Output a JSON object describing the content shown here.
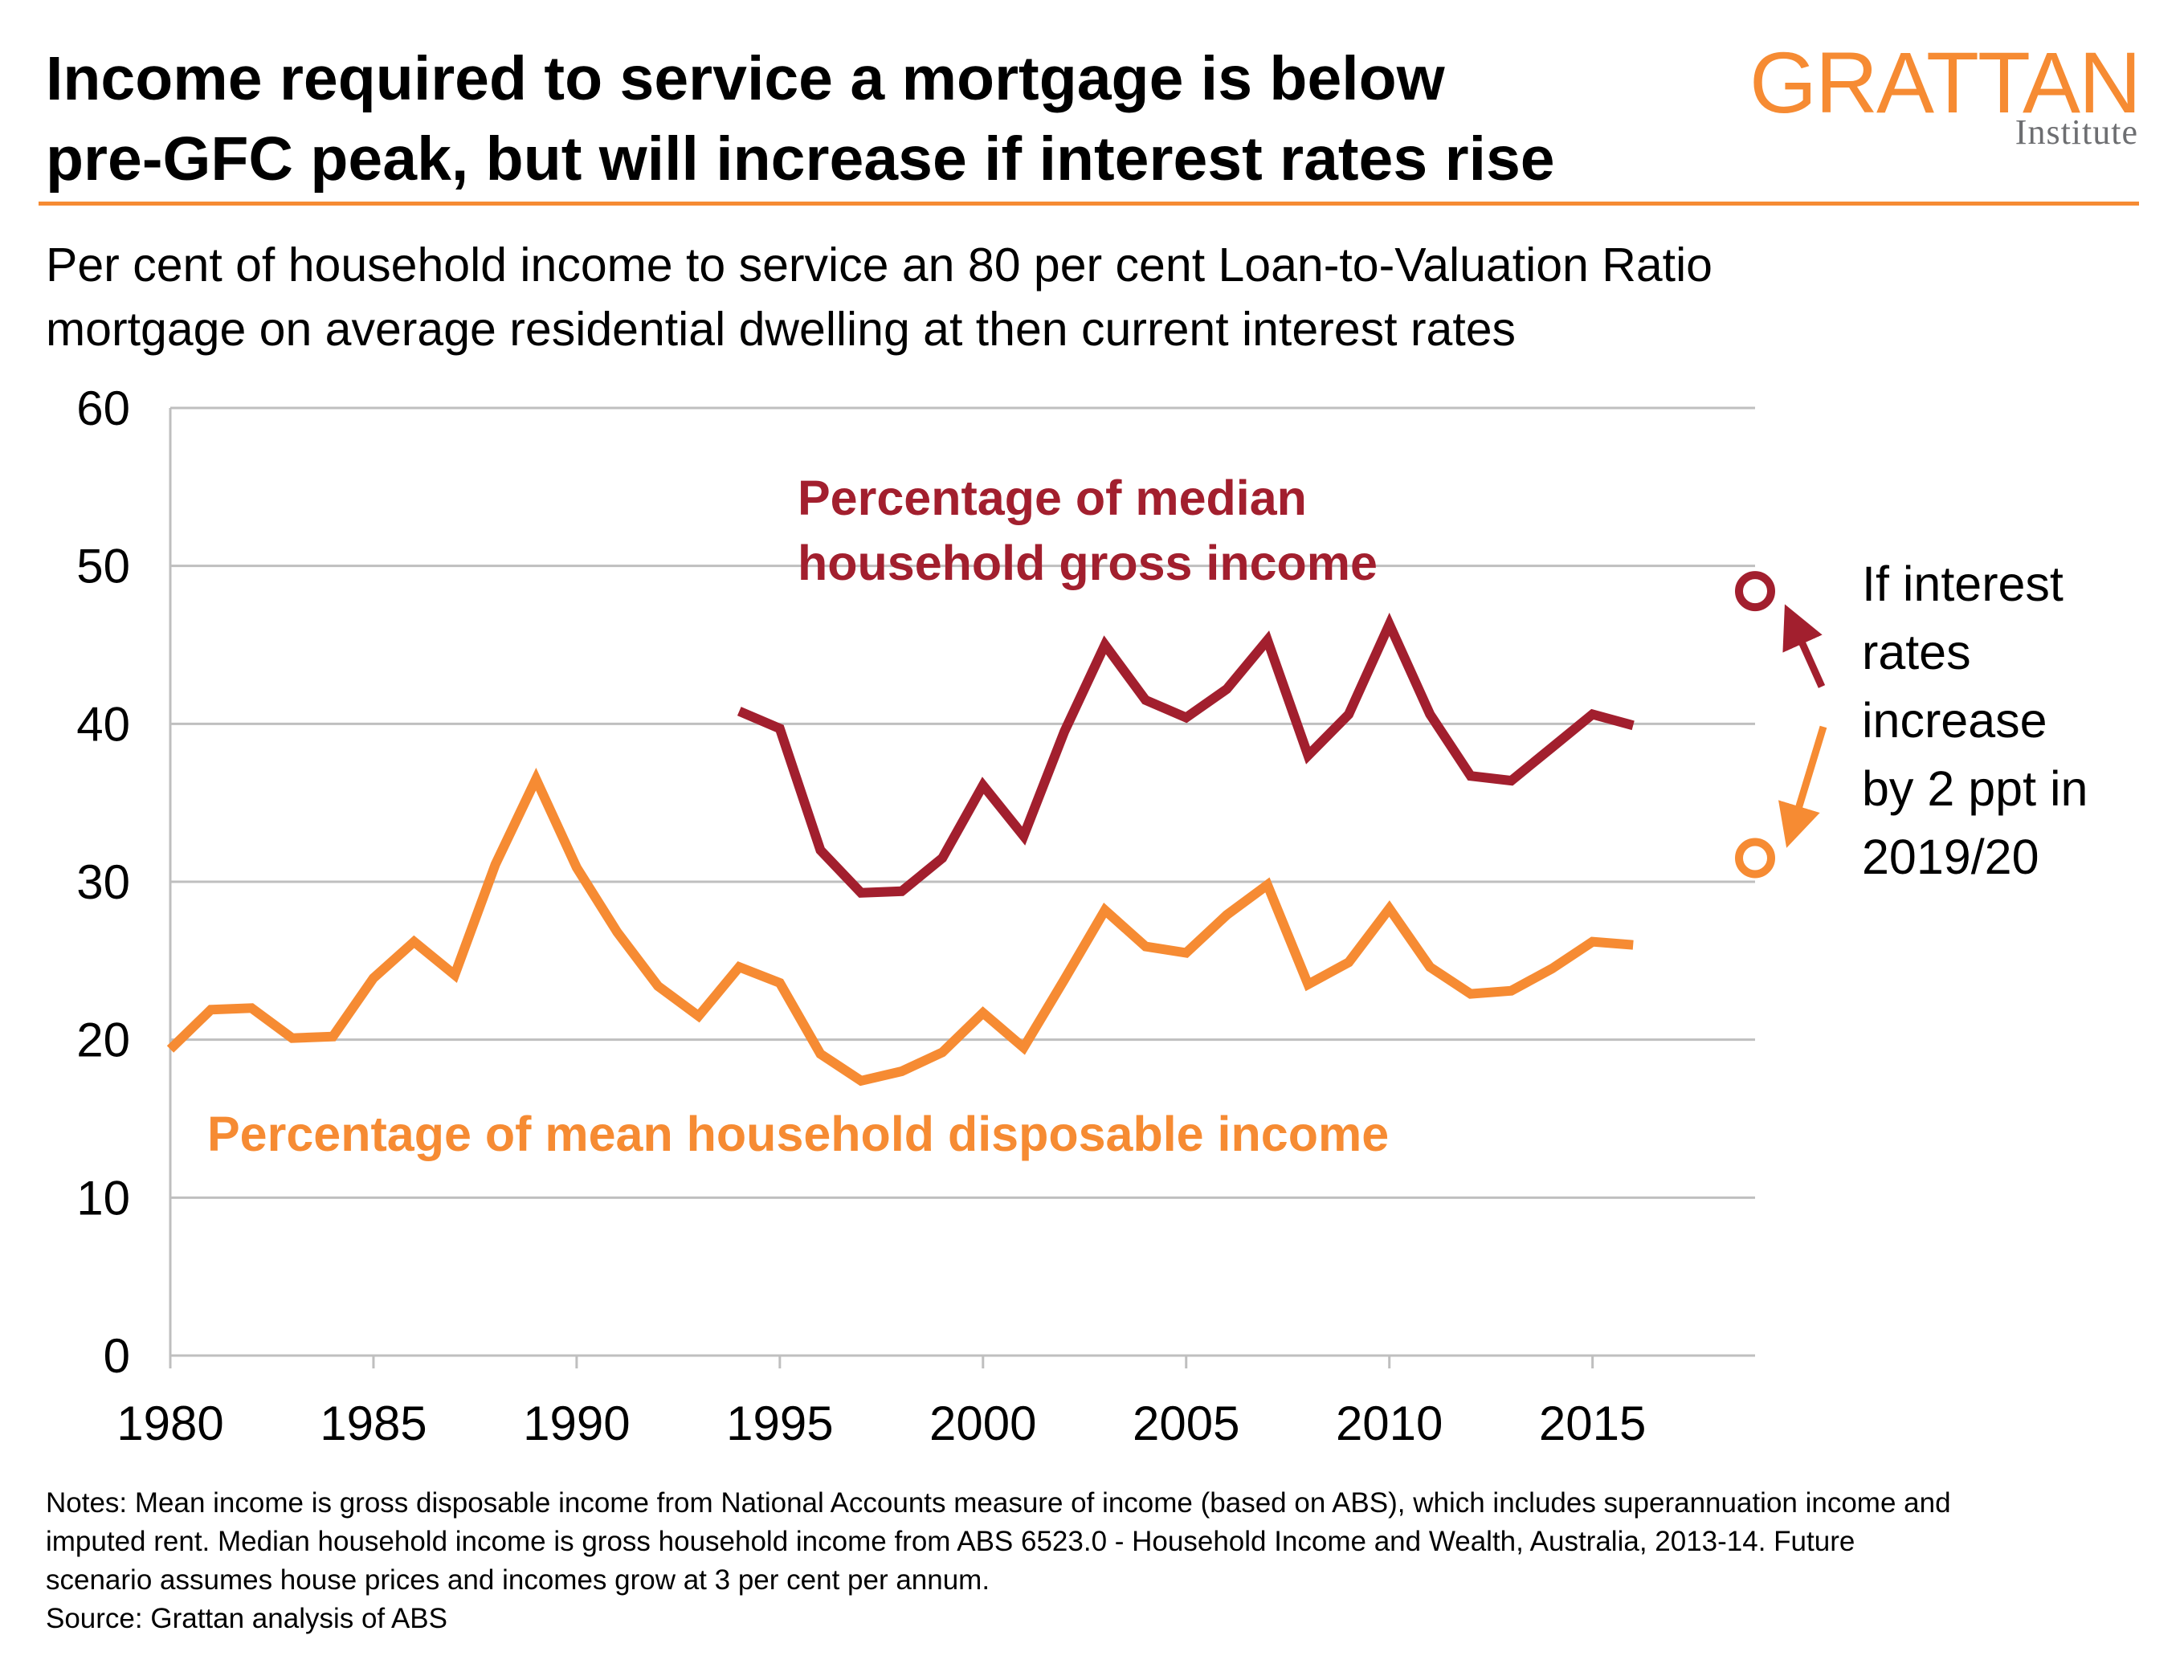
{
  "title_lines": [
    "Income required to service a mortgage is below",
    "pre-GFC peak, but will increase if interest rates rise"
  ],
  "logo": {
    "word": "GRATTAN",
    "sub": "Institute"
  },
  "subtitle_lines": [
    "Per cent of household income to service an 80 per cent Loan-to-Valuation Ratio",
    "mortgage on average residential dwelling at then current interest rates"
  ],
  "colors": {
    "accent": "#f68b33",
    "median": "#a21f2e",
    "mean": "#f68b33",
    "grid": "#bfbfbf"
  },
  "chart_data": {
    "type": "line",
    "title": "Income required to service a mortgage is below pre-GFC peak, but will increase if interest rates rise",
    "xlim": [
      1980,
      2019
    ],
    "ylim": [
      0,
      60
    ],
    "x_ticks": [
      1980,
      1985,
      1990,
      1995,
      2000,
      2005,
      2010,
      2015
    ],
    "y_ticks": [
      0,
      10,
      20,
      30,
      40,
      50,
      60
    ],
    "grid": "horizontal",
    "series": [
      {
        "name": "Percentage of median household gross income",
        "color": "#a21f2e",
        "x": [
          1994,
          1995,
          1996,
          1997,
          1998,
          1999,
          2000,
          2001,
          2002,
          2003,
          2004,
          2005,
          2006,
          2007,
          2008,
          2009,
          2010,
          2011,
          2012,
          2013,
          2014,
          2015,
          2016
        ],
        "values": [
          40.8,
          39.7,
          32.0,
          29.3,
          29.4,
          31.5,
          36.1,
          32.9,
          39.5,
          45.0,
          41.5,
          40.4,
          42.2,
          45.3,
          38.0,
          40.6,
          46.3,
          40.6,
          36.7,
          36.4,
          38.5,
          40.6,
          39.9
        ]
      },
      {
        "name": "Percentage of mean household disposable income",
        "color": "#f68b33",
        "x": [
          1980,
          1981,
          1982,
          1983,
          1984,
          1985,
          1986,
          1987,
          1988,
          1989,
          1990,
          1991,
          1992,
          1993,
          1994,
          1995,
          1996,
          1997,
          1998,
          1999,
          2000,
          2001,
          2002,
          2003,
          2004,
          2005,
          2006,
          2007,
          2008,
          2009,
          2010,
          2011,
          2012,
          2013,
          2014,
          2015,
          2016
        ],
        "values": [
          19.4,
          21.9,
          22.0,
          20.1,
          20.2,
          23.9,
          26.2,
          24.1,
          31.1,
          36.5,
          30.9,
          26.8,
          23.4,
          21.5,
          24.6,
          23.6,
          19.1,
          17.4,
          18.0,
          19.2,
          21.7,
          19.5,
          23.8,
          28.2,
          25.9,
          25.5,
          27.9,
          29.8,
          23.5,
          24.9,
          28.3,
          24.6,
          22.9,
          23.1,
          24.5,
          26.2,
          26.0
        ]
      }
    ],
    "scenario_points": [
      {
        "series": "Percentage of median household gross income",
        "x": 2019,
        "value": 48.4
      },
      {
        "series": "Percentage of mean household disposable income",
        "x": 2019,
        "value": 31.5
      }
    ],
    "labels": {
      "median": [
        "Percentage of median",
        "household gross income"
      ],
      "mean": "Percentage of mean household disposable income",
      "annotation": [
        "If interest",
        "rates",
        "increase",
        "by 2 ppt in",
        "2019/20"
      ]
    }
  },
  "notes_lines": [
    "Notes: Mean income is gross disposable income from National Accounts measure of income (based on ABS), which includes superannuation income and",
    "imputed rent. Median household income is gross household income from ABS 6523.0 - Household Income and Wealth, Australia, 2013-14. Future",
    "scenario assumes house prices and incomes grow at 3 per cent per annum.",
    "Source: Grattan analysis of ABS"
  ]
}
